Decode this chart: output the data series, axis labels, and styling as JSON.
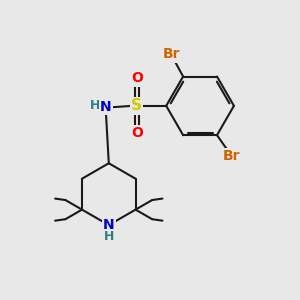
{
  "bg_color": "#e8e8e8",
  "bond_color": "#1a1a1a",
  "atom_colors": {
    "Br": "#cc6600",
    "S": "#cccc00",
    "O": "#ff0000",
    "N": "#0000cc",
    "H": "#2d8080",
    "C": "#1a1a1a"
  },
  "font_size": 9,
  "bond_width": 1.5
}
